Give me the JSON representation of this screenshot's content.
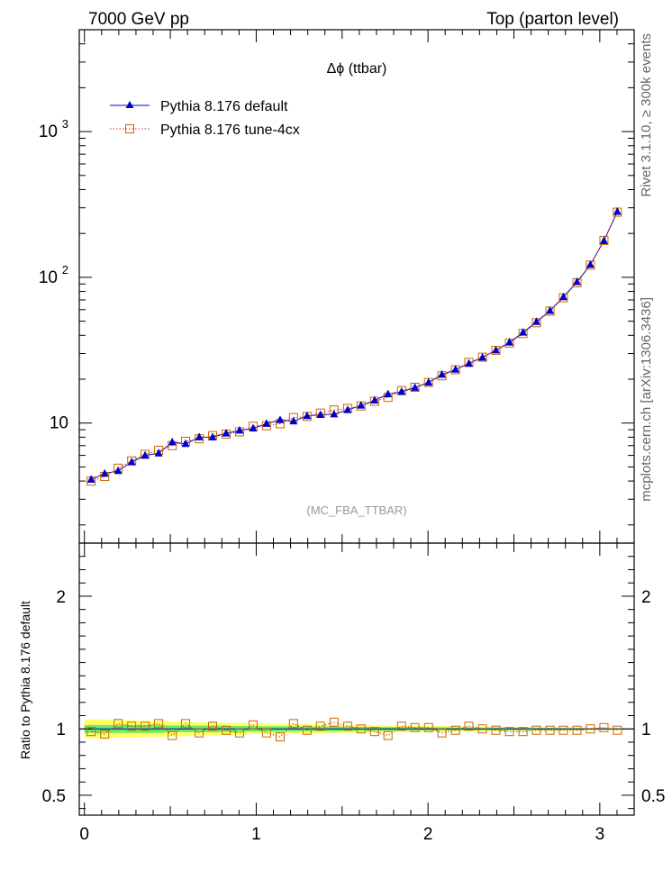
{
  "header": {
    "left": "7000 GeV pp",
    "right": "Top (parton level)"
  },
  "side_text": {
    "rivet": "Rivet 3.1.10, ≥ 300k events",
    "mcplots": "mcplots.cern.ch [arXiv:1306.3436]"
  },
  "chart_data": [
    {
      "type": "scatter",
      "panel": "main",
      "title": "Δϕ (ttbar)",
      "watermark": "(MC_FBA_TTBAR)",
      "xlabel": "",
      "ylabel": "",
      "xlim": [
        -0.03,
        3.2
      ],
      "ylim": [
        1.5,
        5000
      ],
      "yscale": "log",
      "ytick_labels": [
        "10",
        "10^2",
        "10^3"
      ],
      "xtick_labels": [
        "0",
        "1",
        "2",
        "3"
      ],
      "legend_position": "top-left",
      "x": [
        0.039,
        0.118,
        0.196,
        0.275,
        0.353,
        0.432,
        0.511,
        0.589,
        0.668,
        0.746,
        0.825,
        0.903,
        0.982,
        1.06,
        1.139,
        1.217,
        1.296,
        1.374,
        1.453,
        1.532,
        1.61,
        1.689,
        1.767,
        1.846,
        1.924,
        2.003,
        2.081,
        2.16,
        2.238,
        2.317,
        2.395,
        2.474,
        2.553,
        2.631,
        2.71,
        2.788,
        2.867,
        2.945,
        3.024,
        3.102
      ],
      "series": [
        {
          "name": "Pythia 8.176 default",
          "color": "#0000cc",
          "marker": "triangle",
          "values": [
            4.1,
            4.5,
            4.7,
            5.4,
            6.0,
            6.2,
            7.4,
            7.2,
            8.0,
            8.0,
            8.5,
            8.9,
            9.2,
            9.9,
            10.5,
            10.3,
            11.2,
            11.4,
            11.5,
            12.3,
            13.2,
            14.3,
            15.8,
            16.4,
            17.5,
            19.0,
            21.5,
            23.3,
            25.6,
            28.2,
            31.6,
            35.8,
            41.8,
            49.5,
            59.0,
            73.3,
            93.0,
            122.0,
            178.0,
            282.0
          ]
        },
        {
          "name": "Pythia 8.176 tune-4cx",
          "color": "#cc6600",
          "marker": "open-square",
          "values": [
            4.0,
            4.3,
            4.9,
            5.5,
            6.1,
            6.5,
            7.0,
            7.5,
            7.8,
            8.2,
            8.4,
            8.7,
            9.5,
            9.6,
            9.9,
            10.9,
            11.1,
            11.7,
            12.3,
            12.6,
            13.1,
            14.1,
            15.0,
            16.7,
            17.6,
            19.0,
            21.1,
            23.2,
            26.1,
            28.3,
            31.5,
            35.4,
            41.2,
            48.8,
            58.6,
            72.4,
            91.8,
            121.3,
            179.1,
            279.9
          ]
        }
      ]
    },
    {
      "type": "scatter",
      "panel": "ratio",
      "ylabel": "Ratio to Pythia 8.176 default",
      "xlim": [
        -0.03,
        3.2
      ],
      "ylim": [
        0.35,
        2.4
      ],
      "ytick_labels": [
        "0.5",
        "1",
        "2"
      ],
      "xtick_labels": [
        "0",
        "1",
        "2",
        "3"
      ],
      "reference": 1.0,
      "band_inner_color": "#66ee66",
      "band_outer_color": "#ffff66",
      "band_inner_halfwidth": [
        0.03,
        0.03,
        0.03,
        0.03,
        0.03,
        0.03,
        0.025,
        0.025,
        0.025,
        0.025,
        0.022,
        0.022,
        0.02,
        0.02,
        0.02,
        0.02,
        0.018,
        0.018,
        0.018,
        0.016,
        0.016,
        0.015,
        0.014,
        0.014,
        0.013,
        0.012,
        0.012,
        0.011,
        0.011,
        0.01,
        0.01,
        0.009,
        0.009,
        0.008,
        0.008,
        0.007,
        0.007,
        0.006,
        0.006,
        0.005
      ],
      "band_outer_halfwidth": [
        0.07,
        0.07,
        0.065,
        0.065,
        0.06,
        0.06,
        0.055,
        0.055,
        0.05,
        0.05,
        0.045,
        0.045,
        0.04,
        0.04,
        0.04,
        0.035,
        0.035,
        0.035,
        0.03,
        0.03,
        0.03,
        0.028,
        0.026,
        0.025,
        0.024,
        0.022,
        0.021,
        0.02,
        0.019,
        0.018,
        0.017,
        0.016,
        0.015,
        0.014,
        0.013,
        0.012,
        0.011,
        0.01,
        0.009,
        0.008
      ],
      "series": [
        {
          "name": "Pythia 8.176 tune-4cx",
          "color": "#cc6600",
          "marker": "open-square",
          "values": [
            0.98,
            0.96,
            1.04,
            1.02,
            1.02,
            1.04,
            0.95,
            1.04,
            0.97,
            1.02,
            0.99,
            0.97,
            1.03,
            0.97,
            0.94,
            1.04,
            0.99,
            1.02,
            1.05,
            1.02,
            1.0,
            0.98,
            0.95,
            1.02,
            1.01,
            1.01,
            0.97,
            0.99,
            1.02,
            1.0,
            0.99,
            0.98,
            0.98,
            0.99,
            0.99,
            0.99,
            0.99,
            1.0,
            1.01,
            0.99
          ]
        }
      ]
    }
  ]
}
